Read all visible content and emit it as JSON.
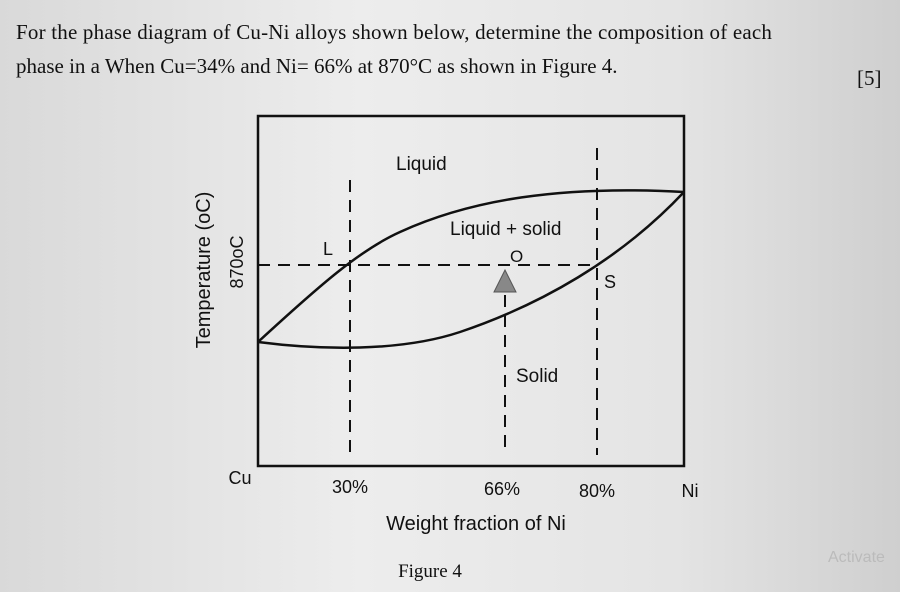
{
  "question": {
    "line1": "For the phase diagram of Cu-Ni alloys shown below, determine the composition of each",
    "line2": "phase in a When Cu=34% and Ni= 66% at 870°C as shown in Figure 4.",
    "marks": "[5]"
  },
  "diagram": {
    "regions": {
      "liquid": "Liquid",
      "two_phase": "Liquid + solid",
      "solid": "Solid"
    },
    "points": {
      "l": "L",
      "o": "O",
      "s": "S"
    },
    "temperature_label": "870oC",
    "y_axis_label": "Temperature (oC)",
    "x_labels": [
      "Cu",
      "30%",
      "66%",
      "80%",
      "Ni"
    ],
    "x_axis_label": "Weight fraction of Ni"
  },
  "caption": "Figure 4",
  "watermark": "Activate"
}
